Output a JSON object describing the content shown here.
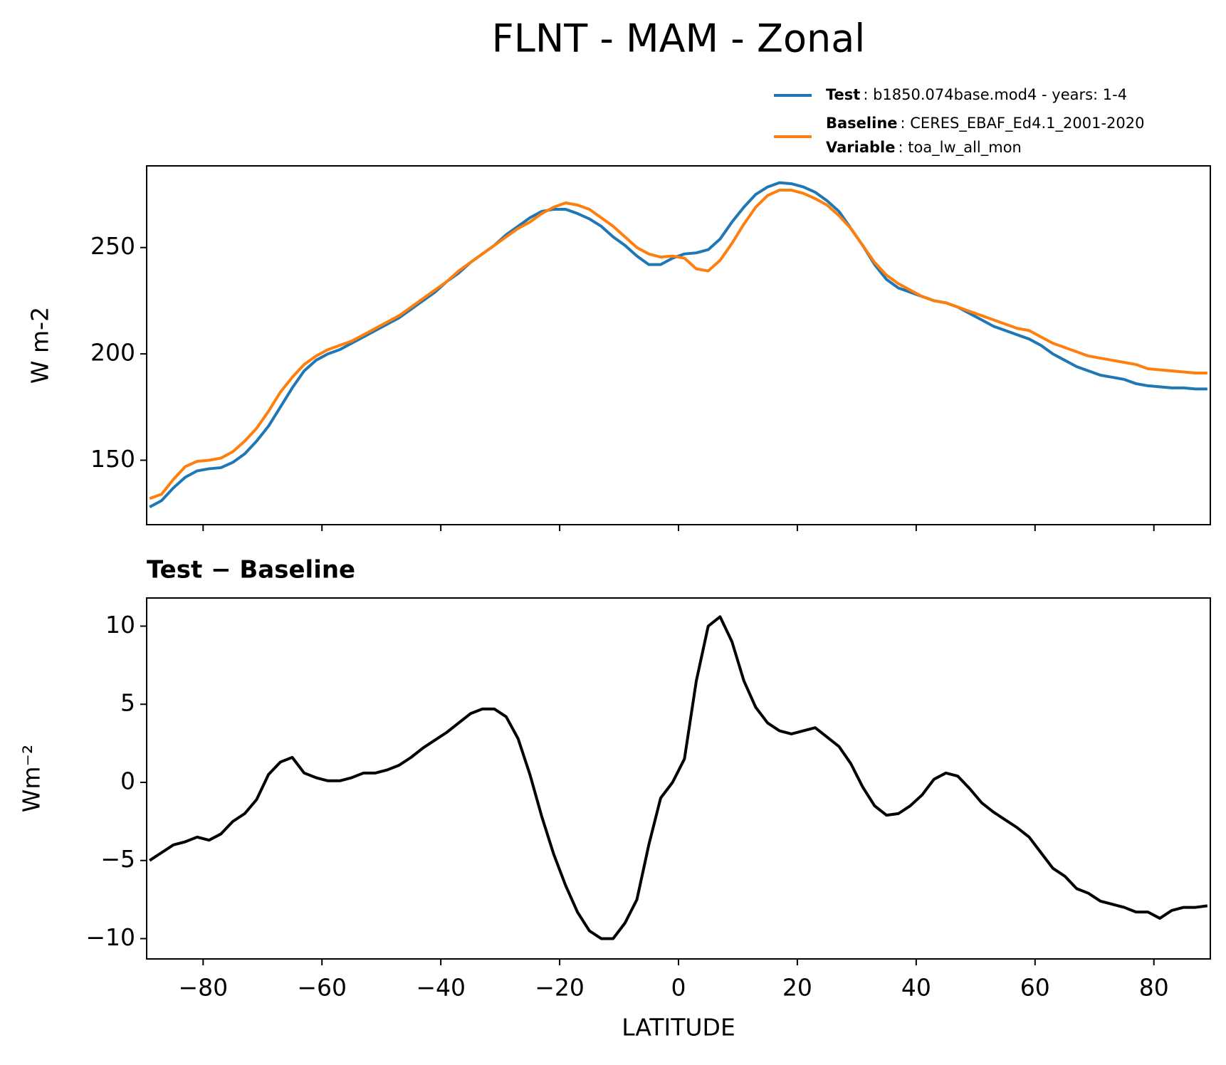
{
  "title": "FLNT - MAM - Zonal",
  "chart_data": [
    {
      "type": "line",
      "ylabel": "W m-2",
      "x": [
        -89,
        -87,
        -85,
        -83,
        -81,
        -79,
        -77,
        -75,
        -73,
        -71,
        -69,
        -67,
        -65,
        -63,
        -61,
        -59,
        -57,
        -55,
        -53,
        -51,
        -49,
        -47,
        -45,
        -43,
        -41,
        -39,
        -37,
        -35,
        -33,
        -31,
        -29,
        -27,
        -25,
        -23,
        -21,
        -19,
        -17,
        -15,
        -13,
        -11,
        -9,
        -7,
        -5,
        -3,
        -1,
        1,
        3,
        5,
        7,
        9,
        11,
        13,
        15,
        17,
        19,
        21,
        23,
        25,
        27,
        29,
        31,
        33,
        35,
        37,
        39,
        41,
        43,
        45,
        47,
        49,
        51,
        53,
        55,
        57,
        59,
        61,
        63,
        65,
        67,
        69,
        71,
        73,
        75,
        77,
        79,
        81,
        83,
        85,
        87,
        89
      ],
      "series": [
        {
          "name": "Test",
          "description": ": b1850.074base.mod4 - years: 1-4",
          "color": "#1f77b4",
          "values": [
            128,
            131,
            137,
            142,
            145,
            146,
            146.5,
            149,
            153,
            159,
            166,
            175,
            184,
            192,
            197,
            200,
            202,
            205,
            208,
            211,
            214,
            217,
            221,
            225,
            229,
            234,
            238,
            243,
            247,
            251,
            256,
            260,
            264,
            267,
            268,
            268,
            266,
            263.5,
            260,
            255,
            251,
            246,
            242,
            242,
            245,
            247,
            247.5,
            249,
            254,
            262,
            269,
            275,
            278.5,
            280.5,
            280,
            278.5,
            276,
            272,
            267,
            259,
            251,
            242,
            235,
            231,
            229,
            227,
            225,
            224,
            222,
            219,
            216,
            213,
            211,
            209,
            207,
            204,
            200,
            197,
            194,
            192,
            190,
            189,
            188,
            186,
            185,
            184.5,
            184,
            184,
            183.5,
            183.5
          ]
        },
        {
          "name": "Baseline",
          "description": ": CERES_EBAF_Ed4.1_2001-2020",
          "extra_name": "Variable",
          "extra_description": ": toa_lw_all_mon",
          "color": "#ff7f0e",
          "values": [
            132,
            134,
            141,
            147,
            149.5,
            150,
            151,
            154,
            159,
            165,
            173,
            182,
            189,
            195,
            199,
            202,
            204,
            206,
            209,
            212,
            215,
            218,
            222,
            226,
            230,
            234,
            239,
            243,
            247,
            251,
            255,
            259,
            262,
            266,
            269,
            271,
            270,
            268,
            264,
            260,
            255,
            250,
            247,
            245.5,
            246,
            245,
            240,
            239,
            244,
            252,
            261,
            269,
            274.5,
            277,
            277,
            275.5,
            273,
            270,
            265,
            259,
            251,
            243,
            237,
            233,
            230,
            227,
            225,
            224,
            222,
            220,
            218,
            216,
            214,
            212,
            211,
            208,
            205,
            203,
            201,
            199,
            198,
            197,
            196,
            195,
            193,
            192.5,
            192,
            191.5,
            191,
            191
          ]
        }
      ],
      "xlim": [
        -89.5,
        89.5
      ],
      "xticks": [
        -80,
        -60,
        -40,
        -20,
        0,
        20,
        40,
        60,
        80
      ],
      "ylim": [
        119.7,
        288.4
      ],
      "yticks": [
        150,
        200,
        250
      ]
    },
    {
      "type": "line",
      "title": "Test − Baseline",
      "ylabel": "Wm⁻²",
      "xlabel": "LATITUDE",
      "x": [
        -89,
        -87,
        -85,
        -83,
        -81,
        -79,
        -77,
        -75,
        -73,
        -71,
        -69,
        -67,
        -65,
        -63,
        -61,
        -59,
        -57,
        -55,
        -53,
        -51,
        -49,
        -47,
        -45,
        -43,
        -41,
        -39,
        -37,
        -35,
        -33,
        -31,
        -29,
        -27,
        -25,
        -23,
        -21,
        -19,
        -17,
        -15,
        -13,
        -11,
        -9,
        -7,
        -5,
        -3,
        -1,
        1,
        3,
        5,
        7,
        9,
        11,
        13,
        15,
        17,
        19,
        21,
        23,
        25,
        27,
        29,
        31,
        33,
        35,
        37,
        39,
        41,
        43,
        45,
        47,
        49,
        51,
        53,
        55,
        57,
        59,
        61,
        63,
        65,
        67,
        69,
        71,
        73,
        75,
        77,
        79,
        81,
        83,
        85,
        87,
        89
      ],
      "series": [
        {
          "color": "#000000",
          "values": [
            -5.0,
            -4.5,
            -4.0,
            -3.8,
            -3.5,
            -3.7,
            -3.3,
            -2.5,
            -2.0,
            -1.1,
            0.5,
            1.3,
            1.6,
            0.6,
            0.3,
            0.1,
            0.1,
            0.3,
            0.6,
            0.6,
            0.8,
            1.1,
            1.6,
            2.2,
            2.7,
            3.2,
            3.8,
            4.4,
            4.7,
            4.7,
            4.2,
            2.8,
            0.5,
            -2.2,
            -4.6,
            -6.6,
            -8.3,
            -9.5,
            -10.0,
            -10.0,
            -9.0,
            -7.5,
            -4.0,
            -1.0,
            0.0,
            1.5,
            6.5,
            10.0,
            10.6,
            9.0,
            6.5,
            4.8,
            3.8,
            3.3,
            3.1,
            3.3,
            3.5,
            2.9,
            2.3,
            1.2,
            -0.3,
            -1.5,
            -2.1,
            -2.0,
            -1.5,
            -0.8,
            0.2,
            0.6,
            0.4,
            -0.4,
            -1.3,
            -1.9,
            -2.4,
            -2.9,
            -3.5,
            -4.5,
            -5.5,
            -6.0,
            -6.8,
            -7.1,
            -7.6,
            -7.8,
            -8.0,
            -8.3,
            -8.3,
            -8.7,
            -8.2,
            -8.0,
            -8.0,
            -7.9
          ]
        }
      ],
      "xlim": [
        -89.5,
        89.5
      ],
      "xticks": [
        {
          "value": -80,
          "label": "−80"
        },
        {
          "value": -60,
          "label": "−60"
        },
        {
          "value": -40,
          "label": "−40"
        },
        {
          "value": -20,
          "label": "−20"
        },
        0,
        20,
        40,
        60,
        80
      ],
      "ylim": [
        -11.3,
        11.8
      ],
      "yticks": [
        {
          "value": -10,
          "label": "−10"
        },
        {
          "value": -5,
          "label": "−5"
        },
        0,
        5,
        10
      ]
    }
  ]
}
